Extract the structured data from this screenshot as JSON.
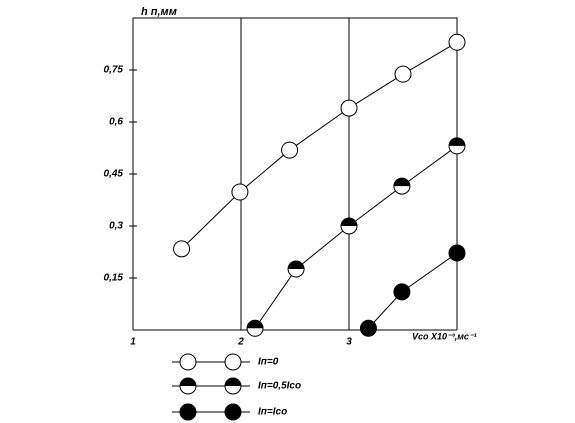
{
  "chart_data": {
    "type": "line",
    "y_label": "h п,мм",
    "x_label": "Vсо X10⁻³,мс⁻¹",
    "xlim": [
      1,
      4
    ],
    "xticks": [
      1,
      2,
      3
    ],
    "ylim": [
      0,
      0.9
    ],
    "yticks": [
      {
        "value": 0.15,
        "label": "0,15"
      },
      {
        "value": 0.3,
        "label": "0,3"
      },
      {
        "value": 0.45,
        "label": "0,45"
      },
      {
        "value": 0.6,
        "label": "0,6"
      },
      {
        "value": 0.75,
        "label": "0,75"
      }
    ],
    "grid": "x",
    "series": [
      {
        "name": "Iп=0",
        "color": "#000000",
        "marker": "open",
        "x": [
          1.45,
          1.99,
          2.45,
          3.0,
          3.5,
          4.0
        ],
        "values": [
          0.234,
          0.398,
          0.519,
          0.64,
          0.738,
          0.83
        ]
      },
      {
        "name": "Iп=0,5Iсо",
        "color": "#000000",
        "marker": "half",
        "x": [
          2.13,
          2.51,
          3.0,
          3.49,
          4.0
        ],
        "values": [
          0.005,
          0.176,
          0.3,
          0.415,
          0.531
        ]
      },
      {
        "name": "Iп=Iсо",
        "color": "#000000",
        "marker": "filled",
        "x": [
          3.18,
          3.49,
          4.0
        ],
        "values": [
          0.005,
          0.11,
          0.222
        ]
      }
    ]
  }
}
